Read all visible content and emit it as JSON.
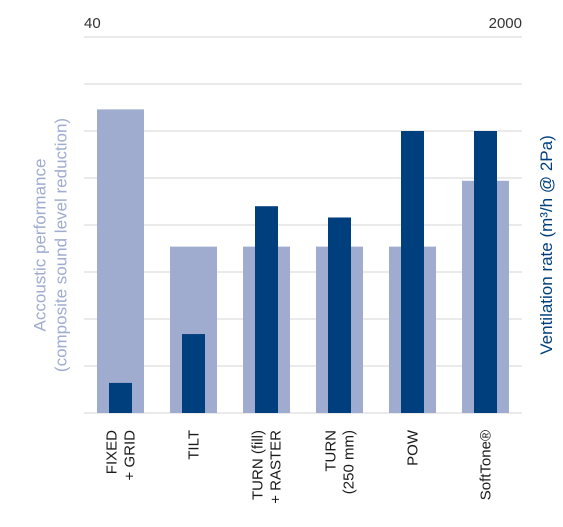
{
  "chart_data": {
    "type": "bar",
    "categories": [
      "FIXED\n+ GRID",
      "TILT",
      "TURN (fill)\n+ RASTER",
      "TURN\n(250 mm)",
      "POW",
      "SoftTone®"
    ],
    "series": [
      {
        "axis": "left",
        "color": "#9facd0",
        "values": [
          32.3,
          17.7,
          17.7,
          17.7,
          17.7,
          24.7
        ]
      },
      {
        "axis": "right",
        "color": "#003f7d",
        "values": [
          160,
          420,
          1100,
          1040,
          1500,
          1500
        ]
      }
    ],
    "ylabel_left": "Accoustic performance\n(composite sound level reduction)",
    "ylabel_right": "Ventilation rate (m³/h @ 2Pa)",
    "ylim_left": [
      0,
      40
    ],
    "ylim_right": [
      0,
      2000
    ],
    "top_tick_left": "40",
    "top_tick_right": "2000",
    "grid": true,
    "label_colors": {
      "left": "#9facd0",
      "right": "#003f7d"
    }
  }
}
